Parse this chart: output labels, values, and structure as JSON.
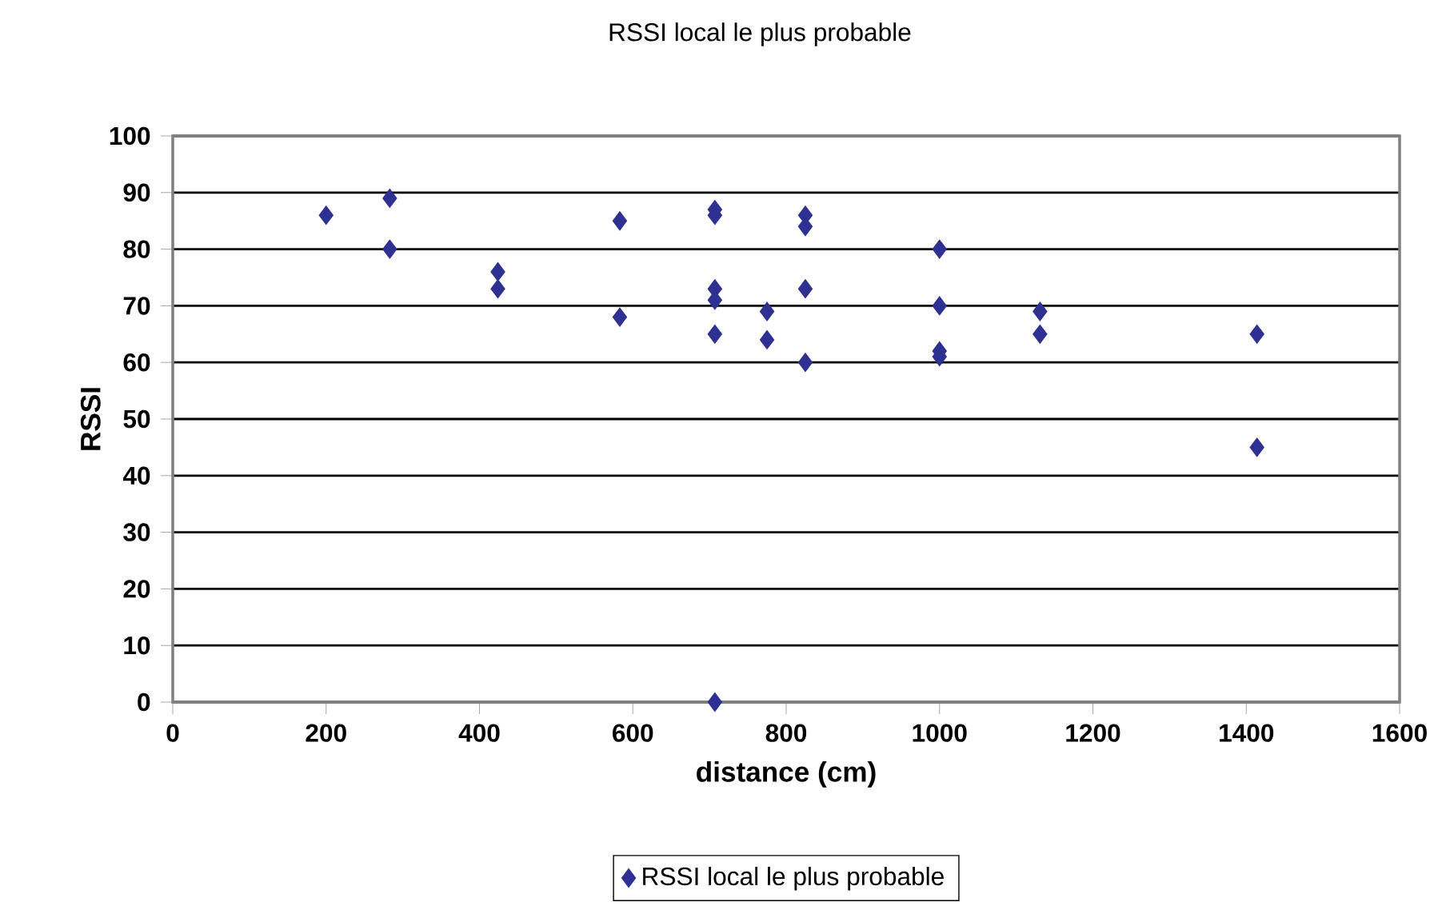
{
  "chart_data": {
    "type": "scatter",
    "title": "RSSI local le plus probable",
    "xlabel": "distance (cm)",
    "ylabel": "RSSI",
    "series": [
      {
        "name": "RSSI local le plus probable",
        "color": "#2e3192",
        "x": [
          200,
          283,
          283,
          424,
          424,
          583,
          583,
          707,
          707,
          707,
          707,
          707,
          707,
          775,
          775,
          825,
          825,
          825,
          825,
          1000,
          1000,
          1000,
          1000,
          1131,
          1131,
          1414,
          1414
        ],
        "values": [
          86,
          89,
          80,
          76,
          73,
          85,
          68,
          87,
          86,
          73,
          71,
          65,
          0,
          69,
          64,
          86,
          84,
          73,
          60,
          80,
          70,
          62,
          61,
          69,
          65,
          65,
          45
        ]
      }
    ],
    "xlim": [
      0,
      1600
    ],
    "xticks": [
      0,
      200,
      400,
      600,
      800,
      1000,
      1200,
      1400,
      1600
    ],
    "ylim": [
      0,
      100
    ],
    "yticks": [
      0,
      10,
      20,
      30,
      40,
      50,
      60,
      70,
      80,
      90,
      100
    ],
    "grid": "y",
    "legend": "bottom",
    "marker": "diamond"
  }
}
